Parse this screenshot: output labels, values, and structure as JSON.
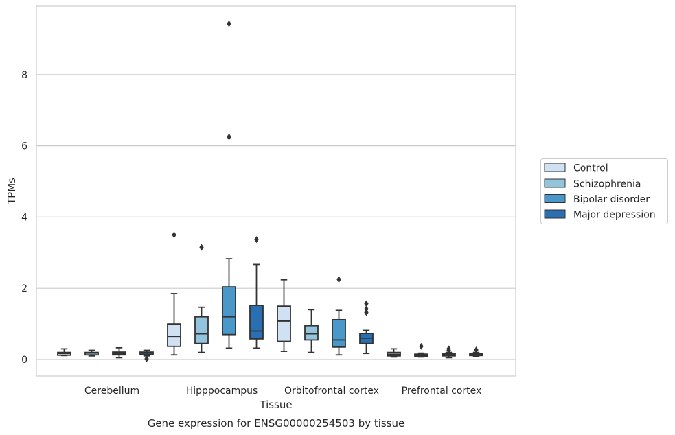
{
  "chart_data": {
    "type": "box",
    "title": "",
    "caption": "Gene expression for ENSG00000254503 by tissue",
    "xlabel": "Tissue",
    "ylabel": "TPMs",
    "ylim": [
      -0.45,
      9.75
    ],
    "yticks": [
      0,
      2,
      4,
      6,
      8
    ],
    "grid": "horizontal",
    "legend_position": "right",
    "categories": [
      "Cerebellum",
      "Hipppocampus",
      "Orbitofrontal cortex",
      "Prefrontal cortex"
    ],
    "series": [
      {
        "name": "Control",
        "color": "#cfe1f2",
        "boxes": [
          {
            "whislo": 0.11,
            "q1": 0.12,
            "med": 0.17,
            "q3": 0.2,
            "whishi": 0.3,
            "fliers": []
          },
          {
            "whislo": 0.13,
            "q1": 0.37,
            "med": 0.65,
            "q3": 1.0,
            "whishi": 1.85,
            "fliers": [
              3.5
            ]
          },
          {
            "whislo": 0.23,
            "q1": 0.51,
            "med": 1.08,
            "q3": 1.5,
            "whishi": 2.24,
            "fliers": []
          },
          {
            "whislo": 0.07,
            "q1": 0.1,
            "med": 0.15,
            "q3": 0.2,
            "whishi": 0.3,
            "fliers": []
          }
        ]
      },
      {
        "name": "Schizophrenia",
        "color": "#93c4de",
        "boxes": [
          {
            "whislo": 0.1,
            "q1": 0.13,
            "med": 0.18,
            "q3": 0.2,
            "whishi": 0.26,
            "fliers": []
          },
          {
            "whislo": 0.2,
            "q1": 0.45,
            "med": 0.72,
            "q3": 1.2,
            "whishi": 1.47,
            "fliers": [
              3.15
            ]
          },
          {
            "whislo": 0.2,
            "q1": 0.55,
            "med": 0.72,
            "q3": 0.95,
            "whishi": 1.4,
            "fliers": []
          },
          {
            "whislo": 0.07,
            "q1": 0.09,
            "med": 0.12,
            "q3": 0.15,
            "whishi": 0.18,
            "fliers": [
              0.37
            ]
          }
        ]
      },
      {
        "name": "Bipolar disorder",
        "color": "#4a98c9",
        "boxes": [
          {
            "whislo": 0.05,
            "q1": 0.13,
            "med": 0.16,
            "q3": 0.21,
            "whishi": 0.33,
            "fliers": []
          },
          {
            "whislo": 0.32,
            "q1": 0.7,
            "med": 1.2,
            "q3": 2.04,
            "whishi": 2.83,
            "fliers": [
              6.25,
              9.43
            ]
          },
          {
            "whislo": 0.13,
            "q1": 0.35,
            "med": 0.55,
            "q3": 1.12,
            "whishi": 1.38,
            "fliers": [
              2.25
            ]
          },
          {
            "whislo": 0.05,
            "q1": 0.1,
            "med": 0.13,
            "q3": 0.16,
            "whishi": 0.2,
            "fliers": [
              0.3,
              0.26
            ]
          }
        ]
      },
      {
        "name": "Major depression",
        "color": "#2a6fb1",
        "boxes": [
          {
            "whislo": 0.1,
            "q1": 0.14,
            "med": 0.18,
            "q3": 0.21,
            "whishi": 0.26,
            "fliers": [
              0.02
            ]
          },
          {
            "whislo": 0.32,
            "q1": 0.58,
            "med": 0.8,
            "q3": 1.52,
            "whishi": 2.67,
            "fliers": [
              3.37
            ]
          },
          {
            "whislo": 0.17,
            "q1": 0.45,
            "med": 0.6,
            "q3": 0.73,
            "whishi": 0.82,
            "fliers": [
              1.32,
              1.42,
              1.57
            ]
          },
          {
            "whislo": 0.09,
            "q1": 0.11,
            "med": 0.14,
            "q3": 0.17,
            "whishi": 0.2,
            "fliers": [
              0.27
            ]
          }
        ]
      }
    ]
  }
}
